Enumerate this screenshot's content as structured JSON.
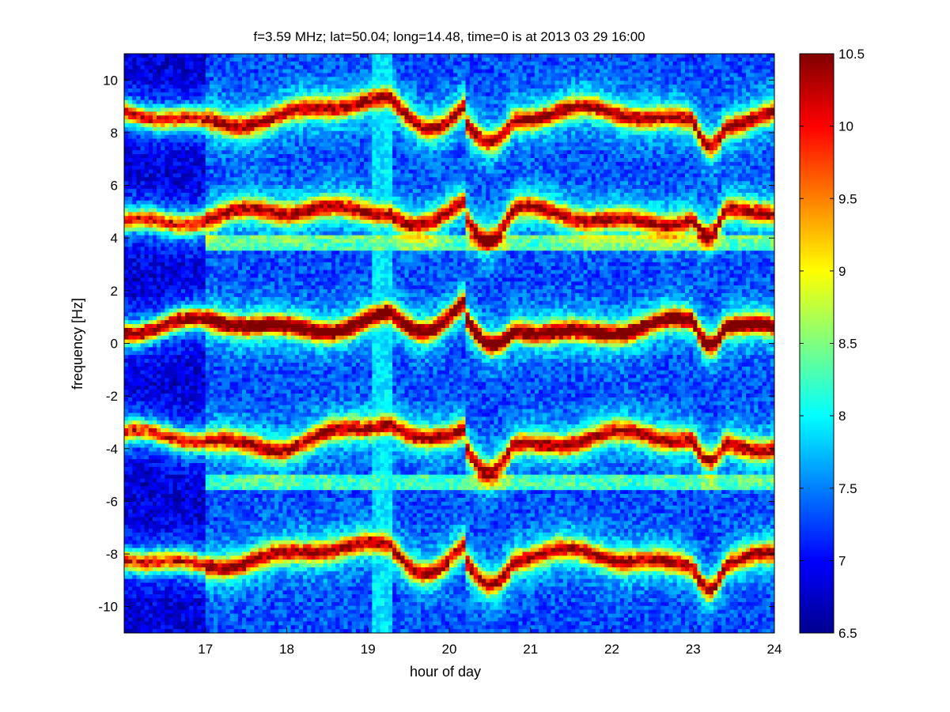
{
  "chart_data": {
    "type": "heatmap",
    "title": "f=3.59 MHz;  lat=50.04; long=14.48, time=0 is at 2013 03 29 16:00",
    "xlabel": "hour of day",
    "ylabel": "frequency [Hz]",
    "xlim": [
      16,
      24
    ],
    "ylim": [
      -11,
      11
    ],
    "x_ticks": [
      "17",
      "18",
      "19",
      "20",
      "21",
      "22",
      "23",
      "24"
    ],
    "y_ticks": [
      "10",
      "8",
      "6",
      "4",
      "2",
      "0",
      "-2",
      "-4",
      "-6",
      "-8",
      "-10"
    ],
    "colorbar": {
      "colormap": "jet",
      "range": [
        6.5,
        10.5
      ],
      "ticks": [
        "10.5",
        "10",
        "9.5",
        "9",
        "8.5",
        "8",
        "7.5",
        "7",
        "6.5"
      ]
    },
    "grid": false,
    "bands_hz": [
      8.6,
      4.8,
      0.6,
      -3.7,
      -8.2
    ]
  }
}
